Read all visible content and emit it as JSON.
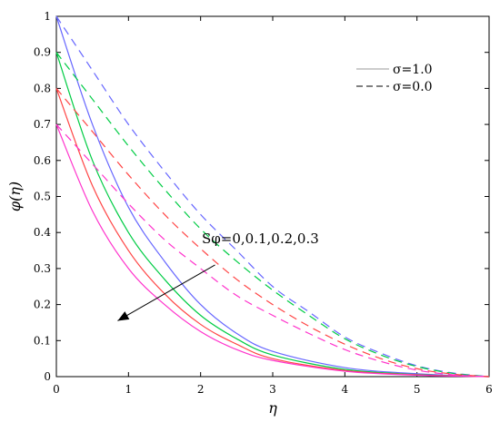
{
  "chart_data": {
    "type": "line",
    "xlabel": "η",
    "ylabel": "φ(η)",
    "xlim": [
      0,
      6
    ],
    "ylim": [
      0,
      1
    ],
    "x_ticks": [
      "0",
      "1",
      "2",
      "3",
      "4",
      "5",
      "6"
    ],
    "y_ticks": [
      "0",
      "0.1",
      "0.2",
      "0.3",
      "0.4",
      "0.5",
      "0.6",
      "0.7",
      "0.8",
      "0.9",
      "1"
    ],
    "legend": {
      "position": "top-right",
      "entries": [
        {
          "label": "σ=1.0",
          "style": "solid"
        },
        {
          "label": "σ=0.0",
          "style": "dashed"
        }
      ]
    },
    "annotation": {
      "text": "Sφ=0,0.1,0.2,0.3",
      "arrow_from": [
        2.2,
        0.31
      ],
      "arrow_to": [
        0.85,
        0.155
      ]
    },
    "series": [
      {
        "color": "#6666ff",
        "style": "solid",
        "x": [
          0,
          0.5,
          1,
          1.5,
          2,
          2.5,
          3,
          4,
          5,
          6
        ],
        "y": [
          1.0,
          0.7,
          0.47,
          0.32,
          0.2,
          0.12,
          0.07,
          0.025,
          0.008,
          0.0
        ]
      },
      {
        "color": "#00cc44",
        "style": "solid",
        "x": [
          0,
          0.5,
          1,
          1.5,
          2,
          2.5,
          3,
          4,
          5,
          6
        ],
        "y": [
          0.9,
          0.6,
          0.4,
          0.27,
          0.17,
          0.105,
          0.06,
          0.02,
          0.006,
          0.0
        ]
      },
      {
        "color": "#ff4444",
        "style": "solid",
        "x": [
          0,
          0.5,
          1,
          1.5,
          2,
          2.5,
          3,
          4,
          5,
          6
        ],
        "y": [
          0.8,
          0.53,
          0.35,
          0.23,
          0.145,
          0.09,
          0.05,
          0.017,
          0.005,
          0.0
        ]
      },
      {
        "color": "#ff33cc",
        "style": "solid",
        "x": [
          0,
          0.5,
          1,
          1.5,
          2,
          2.5,
          3,
          4,
          5,
          6
        ],
        "y": [
          0.7,
          0.46,
          0.3,
          0.2,
          0.125,
          0.075,
          0.045,
          0.015,
          0.004,
          0.0
        ]
      },
      {
        "color": "#6666ff",
        "style": "dashed",
        "x": [
          0,
          0.5,
          1,
          1.5,
          2,
          2.5,
          3,
          3.5,
          4,
          4.5,
          5,
          5.5,
          6
        ],
        "y": [
          1.0,
          0.85,
          0.7,
          0.57,
          0.45,
          0.35,
          0.25,
          0.18,
          0.11,
          0.065,
          0.03,
          0.01,
          0.0
        ]
      },
      {
        "color": "#00cc44",
        "style": "dashed",
        "x": [
          0,
          0.5,
          1,
          1.5,
          2,
          2.5,
          3,
          3.5,
          4,
          4.5,
          5,
          5.5,
          6
        ],
        "y": [
          0.9,
          0.77,
          0.64,
          0.52,
          0.41,
          0.32,
          0.24,
          0.17,
          0.105,
          0.06,
          0.028,
          0.009,
          0.0
        ]
      },
      {
        "color": "#ff4444",
        "style": "dashed",
        "x": [
          0,
          0.5,
          1,
          1.5,
          2,
          2.5,
          3,
          3.5,
          4,
          4.5,
          5,
          5.5,
          6
        ],
        "y": [
          0.8,
          0.68,
          0.56,
          0.45,
          0.355,
          0.27,
          0.2,
          0.14,
          0.09,
          0.05,
          0.022,
          0.007,
          0.0
        ]
      },
      {
        "color": "#ff33cc",
        "style": "dashed",
        "x": [
          0,
          0.5,
          1,
          1.5,
          2,
          2.5,
          3,
          3.5,
          4,
          4.5,
          5,
          5.5,
          6
        ],
        "y": [
          0.7,
          0.59,
          0.48,
          0.38,
          0.3,
          0.225,
          0.17,
          0.12,
          0.075,
          0.042,
          0.018,
          0.005,
          0.0
        ]
      }
    ]
  }
}
